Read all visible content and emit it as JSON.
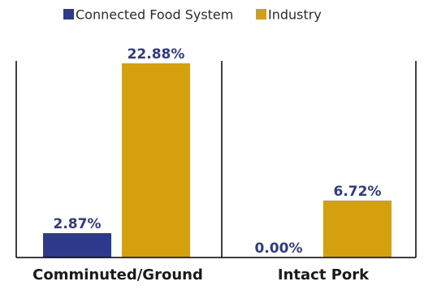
{
  "chart_data": {
    "type": "bar",
    "title": "",
    "xlabel": "",
    "ylabel": "",
    "grid": false,
    "legend_position": "top-center",
    "ylim": [
      0,
      24.5
    ],
    "categories": [
      "Comminuted/Ground",
      "Intact Pork"
    ],
    "series": [
      {
        "name": "Connected Food System",
        "color": "#2E3A8C",
        "values": [
          2.87,
          0.0
        ],
        "labels": [
          "2.87%",
          "0.00%"
        ]
      },
      {
        "name": "Industry",
        "color": "#D4A00E",
        "values": [
          22.88,
          6.72
        ],
        "labels": [
          "22.88%",
          "6.72%"
        ]
      }
    ]
  }
}
